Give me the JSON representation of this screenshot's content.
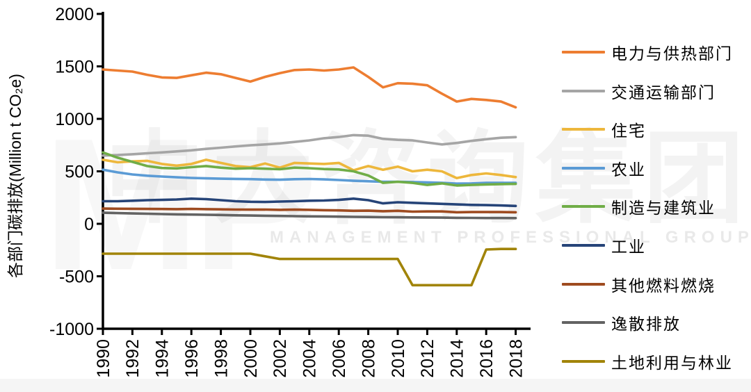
{
  "watermark": {
    "mp": "MP",
    "cn": "中大咨询集团",
    "en": "MANAGEMENT PROFESSIONAL GROUP"
  },
  "chart_data": {
    "type": "line",
    "title": "",
    "ylabel": "各部门碳排放(Million t CO₂e)",
    "xlabel": "",
    "ylim": [
      -1000,
      2000
    ],
    "ytick_step": 500,
    "grid": false,
    "legend_position": "right",
    "x": [
      1990,
      1991,
      1992,
      1993,
      1994,
      1995,
      1996,
      1997,
      1998,
      1999,
      2000,
      2001,
      2002,
      2003,
      2004,
      2005,
      2006,
      2007,
      2008,
      2009,
      2010,
      2011,
      2012,
      2013,
      2014,
      2015,
      2016,
      2017,
      2018
    ],
    "xtick_labels": [
      "1990",
      "1992",
      "1994",
      "1996",
      "1998",
      "2000",
      "2002",
      "2004",
      "2006",
      "2008",
      "2010",
      "2012",
      "2014",
      "2016",
      "2018"
    ],
    "ytick_labels": [
      "2000",
      "1500",
      "1000",
      "500",
      "0",
      "-500",
      "-1000"
    ],
    "series": [
      {
        "name": "电力与供热部门",
        "color": "#ED7D31",
        "values": [
          1470,
          1460,
          1450,
          1420,
          1395,
          1390,
          1415,
          1440,
          1425,
          1390,
          1355,
          1400,
          1435,
          1465,
          1470,
          1460,
          1470,
          1490,
          1400,
          1300,
          1340,
          1335,
          1320,
          1240,
          1165,
          1190,
          1180,
          1165,
          1110
        ]
      },
      {
        "name": "交通运输部门",
        "color": "#A5A5A5",
        "values": [
          650,
          655,
          663,
          672,
          680,
          690,
          700,
          714,
          725,
          737,
          748,
          756,
          766,
          780,
          795,
          815,
          827,
          845,
          840,
          810,
          800,
          795,
          775,
          756,
          770,
          790,
          806,
          820,
          826
        ]
      },
      {
        "name": "住宅",
        "color": "#EDB73C",
        "values": [
          610,
          586,
          595,
          600,
          570,
          554,
          570,
          610,
          580,
          550,
          540,
          575,
          535,
          580,
          575,
          570,
          580,
          510,
          550,
          515,
          545,
          500,
          515,
          500,
          435,
          465,
          480,
          465,
          445
        ]
      },
      {
        "name": "农业",
        "color": "#5B9BD5",
        "values": [
          515,
          490,
          470,
          458,
          450,
          443,
          437,
          433,
          430,
          428,
          426,
          422,
          420,
          425,
          427,
          423,
          417,
          410,
          405,
          400,
          400,
          398,
          395,
          390,
          383,
          385,
          390,
          390,
          390
        ]
      },
      {
        "name": "制造与建筑业",
        "color": "#70AD47",
        "values": [
          680,
          630,
          590,
          550,
          532,
          528,
          540,
          550,
          535,
          525,
          530,
          525,
          520,
          535,
          530,
          522,
          518,
          500,
          460,
          390,
          400,
          390,
          370,
          385,
          365,
          370,
          375,
          378,
          380
        ]
      },
      {
        "name": "工业",
        "color": "#264478",
        "values": [
          215,
          215,
          220,
          225,
          228,
          232,
          240,
          235,
          225,
          215,
          210,
          208,
          212,
          215,
          220,
          222,
          228,
          240,
          225,
          195,
          205,
          200,
          195,
          190,
          185,
          180,
          178,
          175,
          170
        ]
      },
      {
        "name": "其他燃料燃烧",
        "color": "#9E4B20",
        "values": [
          145,
          144,
          143,
          142,
          141,
          140,
          142,
          140,
          138,
          136,
          135,
          136,
          133,
          135,
          133,
          130,
          128,
          124,
          125,
          120,
          124,
          116,
          118,
          118,
          110,
          112,
          112,
          112,
          110
        ]
      },
      {
        "name": "逸散排放",
        "color": "#636363",
        "values": [
          105,
          102,
          99,
          96,
          93,
          90,
          88,
          86,
          84,
          81,
          79,
          77,
          75,
          73,
          71,
          70,
          68,
          66,
          65,
          63,
          62,
          61,
          60,
          59,
          57,
          56,
          55,
          55,
          54
        ]
      },
      {
        "name": "土地利用与林业",
        "color": "#A18409",
        "values": [
          -285,
          -285,
          -285,
          -285,
          -285,
          -285,
          -285,
          -285,
          -285,
          -285,
          -285,
          -310,
          -335,
          -335,
          -335,
          -335,
          -335,
          -335,
          -335,
          -335,
          -335,
          -585,
          -585,
          -585,
          -585,
          -585,
          -245,
          -240,
          -240
        ]
      }
    ]
  }
}
